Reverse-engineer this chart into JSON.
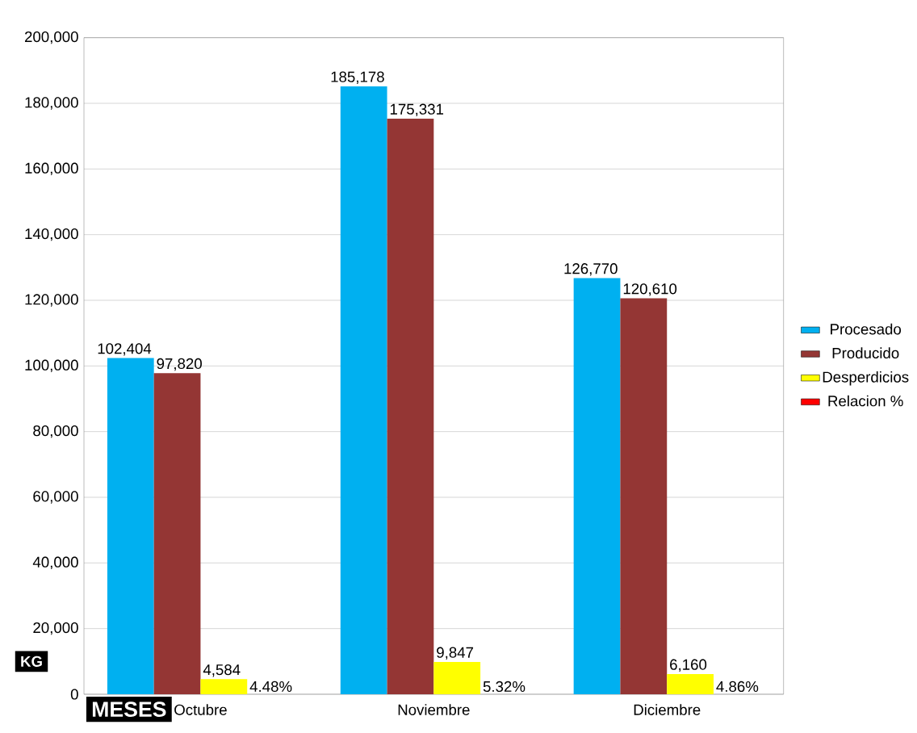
{
  "chart_data": {
    "type": "bar",
    "xlabel": "MESES",
    "ylabel": "KG",
    "categories": [
      "Octubre",
      "Noviembre",
      "Diciembre"
    ],
    "series": [
      {
        "name": "Procesado",
        "color": "#00b0f0",
        "values": [
          102404,
          185178,
          126770
        ],
        "value_labels": [
          "102,404",
          "185,178",
          "126,770"
        ]
      },
      {
        "name": "Producido",
        "color": "#943634",
        "values": [
          97820,
          175331,
          120610
        ],
        "value_labels": [
          "97,820",
          "175,331",
          "120,610"
        ]
      },
      {
        "name": "Desperdicios",
        "color": "#ffff00",
        "values": [
          4584,
          9847,
          6160
        ],
        "value_labels": [
          "4,584",
          "9,847",
          "6,160"
        ]
      },
      {
        "name": "Relacion %",
        "color": "#ff0000",
        "values": [
          4.48,
          5.32,
          4.86
        ],
        "value_labels": [
          "4.48%",
          "5.32%",
          "4.86%"
        ]
      }
    ],
    "ylim": [
      0,
      200000
    ],
    "yticks": [
      0,
      {
        "value": 20000,
        "label": "20,000"
      },
      {
        "value": 40000,
        "label": "40,000"
      },
      {
        "value": 60000,
        "label": "60,000"
      },
      {
        "value": 80000,
        "label": "80,000"
      },
      {
        "value": 100000,
        "label": "100,000"
      },
      {
        "value": 120000,
        "label": "120,000"
      },
      {
        "value": 140000,
        "label": "140,000"
      },
      {
        "value": 160000,
        "label": "160,000"
      },
      {
        "value": 180000,
        "label": "180,000"
      },
      {
        "value": 200000,
        "label": "200,000"
      }
    ],
    "grid": "y",
    "legend": "right"
  }
}
